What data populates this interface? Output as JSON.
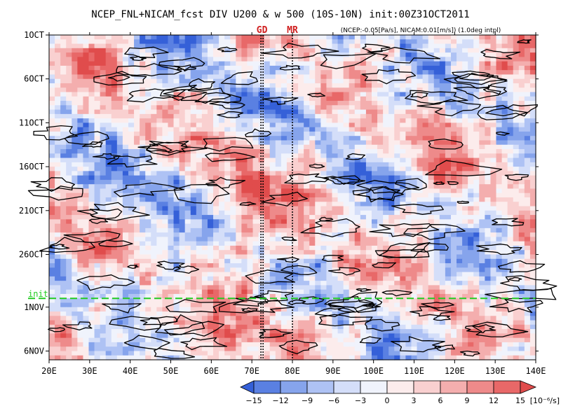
{
  "title": "NCEP_FNL+NICAM_fcst DIV U200 & w 500 (10S-10N) init:00Z31OCT2011",
  "subtitle": "(NCEP:-0.05[Pa/s], NICAM:0.01[m/s]) (1.0deg intpl)",
  "chart_data": {
    "type": "heatmap",
    "title": "NCEP_FNL+NICAM_fcst DIV U200 & w 500 (10S-10N) init:00Z31OCT2011",
    "subtitle": "(NCEP:-0.05[Pa/s], NICAM:0.01[m/s]) (1.0deg intpl)",
    "x_axis": {
      "min": 20,
      "max": 140,
      "ticks": [
        20,
        30,
        40,
        50,
        60,
        70,
        80,
        90,
        100,
        110,
        120,
        130,
        140
      ],
      "tick_labels": [
        "20E",
        "30E",
        "40E",
        "50E",
        "60E",
        "70E",
        "80E",
        "90E",
        "100E",
        "110E",
        "120E",
        "130E",
        "140E"
      ]
    },
    "y_axis": {
      "start_day": 1,
      "end_day": 38,
      "reversed": true,
      "ticks": [
        1,
        6,
        11,
        16,
        21,
        26,
        32,
        37
      ],
      "tick_labels": [
        "1OCT",
        "6OCT",
        "11OCT",
        "16OCT",
        "21OCT",
        "26OCT",
        "1NOV",
        "6NOV"
      ]
    },
    "init_line": {
      "label": "init",
      "day": 31,
      "color": "#22cc22"
    },
    "markers": [
      {
        "label": "GD",
        "lon": 72.5
      },
      {
        "label": "MR",
        "lon": 80
      }
    ],
    "colorbar": {
      "unit": "[10⁻⁶/s]",
      "ticks": [
        "−15",
        "−12",
        "−9",
        "−6",
        "−3",
        "0",
        "3",
        "6",
        "9",
        "12",
        "15"
      ],
      "colors": [
        "#3560d8",
        "#5a80e2",
        "#86a4ec",
        "#aec2f4",
        "#d4def9",
        "#f0f3fc",
        "#fcecec",
        "#f9d0d0",
        "#f4aeae",
        "#ee8a8a",
        "#e86868",
        "#e04c4c"
      ]
    }
  }
}
